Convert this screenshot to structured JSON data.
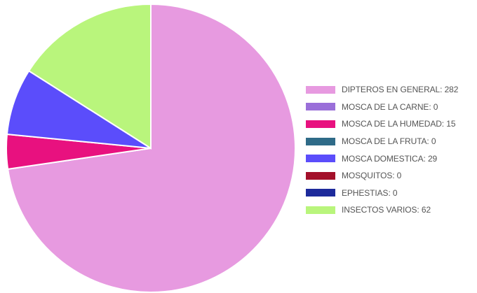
{
  "chart_data": {
    "type": "pie",
    "title": "",
    "legend_position": "right",
    "slices": [
      {
        "label": "DIPTEROS EN GENERAL",
        "value": 282,
        "color": "#e79ae0"
      },
      {
        "label": "MOSCA DE LA CARNE",
        "value": 0,
        "color": "#9a6fd9"
      },
      {
        "label": "MOSCA DE LA HUMEDAD",
        "value": 15,
        "color": "#e8117f"
      },
      {
        "label": "MOSCA DE LA FRUTA",
        "value": 0,
        "color": "#2f6b88"
      },
      {
        "label": "MOSCA DOMESTICA",
        "value": 29,
        "color": "#5b4dfb"
      },
      {
        "label": "MOSQUITOS",
        "value": 0,
        "color": "#a3102a"
      },
      {
        "label": "EPHESTIAS",
        "value": 0,
        "color": "#1d2a9b"
      },
      {
        "label": "INSECTOS VARIOS",
        "value": 62,
        "color": "#b9f57c"
      }
    ]
  }
}
